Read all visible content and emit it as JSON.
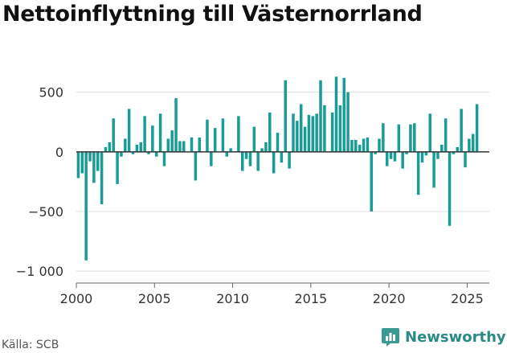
{
  "title": "Nettoinflyttning till Västernorrland",
  "source": "Källa: SCB",
  "brand": {
    "name": "Newsworthy",
    "icon": "newsworthy-logo-icon",
    "color": "#3a9b94"
  },
  "colors": {
    "bar": "#1a9c96",
    "zero_line": "#333333",
    "grid": "#dddddd",
    "axis": "#666666"
  },
  "chart_data": {
    "type": "bar",
    "title": "Nettoinflyttning till Västernorrland",
    "xlabel": "",
    "ylabel": "",
    "frequency": "quarterly",
    "xlim": [
      "2000-01",
      "2026-06"
    ],
    "ylim": [
      -1100,
      700
    ],
    "y_ticks": [
      500,
      0,
      -500,
      -1000
    ],
    "y_tick_labels": [
      "500",
      "0",
      "−500",
      "−1 000"
    ],
    "x_ticks": [
      2000,
      2005,
      2010,
      2015,
      2020,
      2025
    ],
    "x_tick_labels": [
      "2000",
      "2005",
      "2010",
      "2015",
      "2020",
      "2025"
    ],
    "grid": true,
    "series": [
      {
        "values": [
          -220,
          -180,
          -910,
          -80,
          -260,
          -160,
          -440,
          40,
          80,
          280,
          -270,
          -40,
          110,
          360,
          -20,
          60,
          80,
          300,
          -20,
          220,
          -40,
          320,
          -120,
          110,
          180,
          450,
          90,
          90,
          0,
          120,
          -240,
          120,
          0,
          270,
          -120,
          200,
          0,
          280,
          -40,
          30,
          0,
          300,
          -160,
          -60,
          -120,
          210,
          -160,
          30,
          80,
          330,
          -180,
          160,
          -90,
          600,
          -140,
          320,
          260,
          400,
          210,
          310,
          300,
          320,
          600,
          390,
          0,
          330,
          630,
          390,
          620,
          500,
          100,
          100,
          60,
          110,
          120,
          -500,
          -20,
          110,
          240,
          -120,
          -60,
          -80,
          230,
          -140,
          -20,
          230,
          240,
          -360,
          -90,
          -30,
          320,
          -300,
          -60,
          60,
          280,
          -620,
          -20,
          40,
          360,
          -130,
          110,
          150,
          400
        ]
      }
    ]
  }
}
